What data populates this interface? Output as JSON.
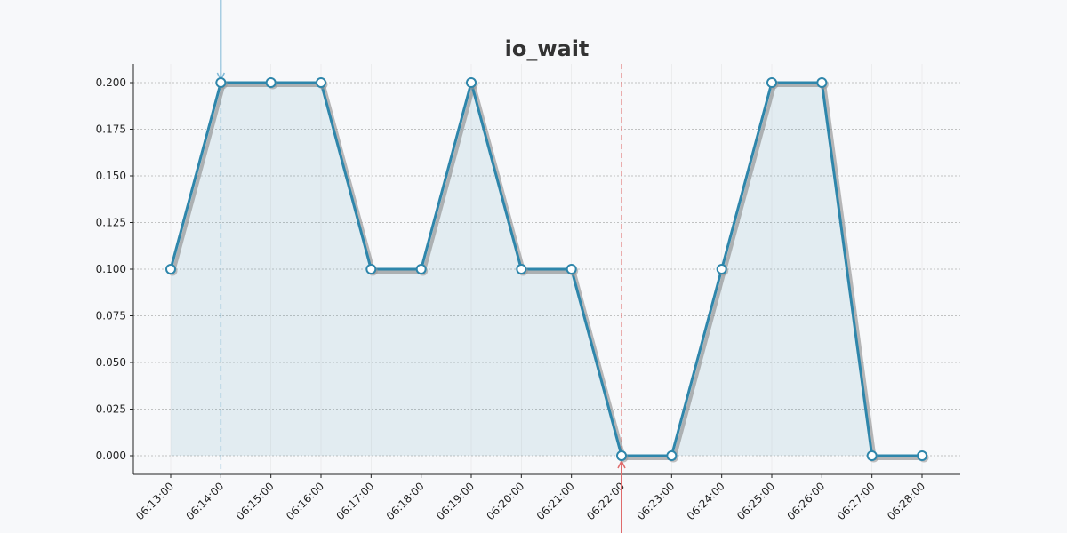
{
  "chart_data": {
    "type": "line",
    "title": "io_wait",
    "categories": [
      "06:13:00",
      "06:14:00",
      "06:15:00",
      "06:16:00",
      "06:17:00",
      "06:18:00",
      "06:19:00",
      "06:20:00",
      "06:21:00",
      "06:22:00",
      "06:23:00",
      "06:24:00",
      "06:25:00",
      "06:26:00",
      "06:27:00",
      "06:28:00"
    ],
    "series": [
      {
        "name": "io_wait",
        "color": "#2e86ab",
        "values": [
          0.1,
          0.2,
          0.2,
          0.2,
          0.1,
          0.1,
          0.2,
          0.1,
          0.1,
          0,
          0,
          0.1,
          0.2,
          0.2,
          0,
          0
        ]
      }
    ],
    "ylim": [
      -0.01,
      0.21
    ],
    "yticks": [
      {
        "value": 0,
        "label": "0.000"
      },
      {
        "value": 0.025,
        "label": "0.025"
      },
      {
        "value": 0.05,
        "label": "0.050"
      },
      {
        "value": 0.075,
        "label": "0.075"
      },
      {
        "value": 0.1,
        "label": "0.100"
      },
      {
        "value": 0.125,
        "label": "0.125"
      },
      {
        "value": 0.15,
        "label": "0.150"
      },
      {
        "value": 0.175,
        "label": "0.175"
      },
      {
        "value": 0.2,
        "label": "0.200"
      }
    ],
    "grid": true,
    "events": [
      {
        "at": "06:14:00",
        "color": "#7fb8d6",
        "arrow": "top"
      },
      {
        "at": "06:22:00",
        "color": "#e06b6b",
        "arrow": "bottom"
      }
    ]
  }
}
